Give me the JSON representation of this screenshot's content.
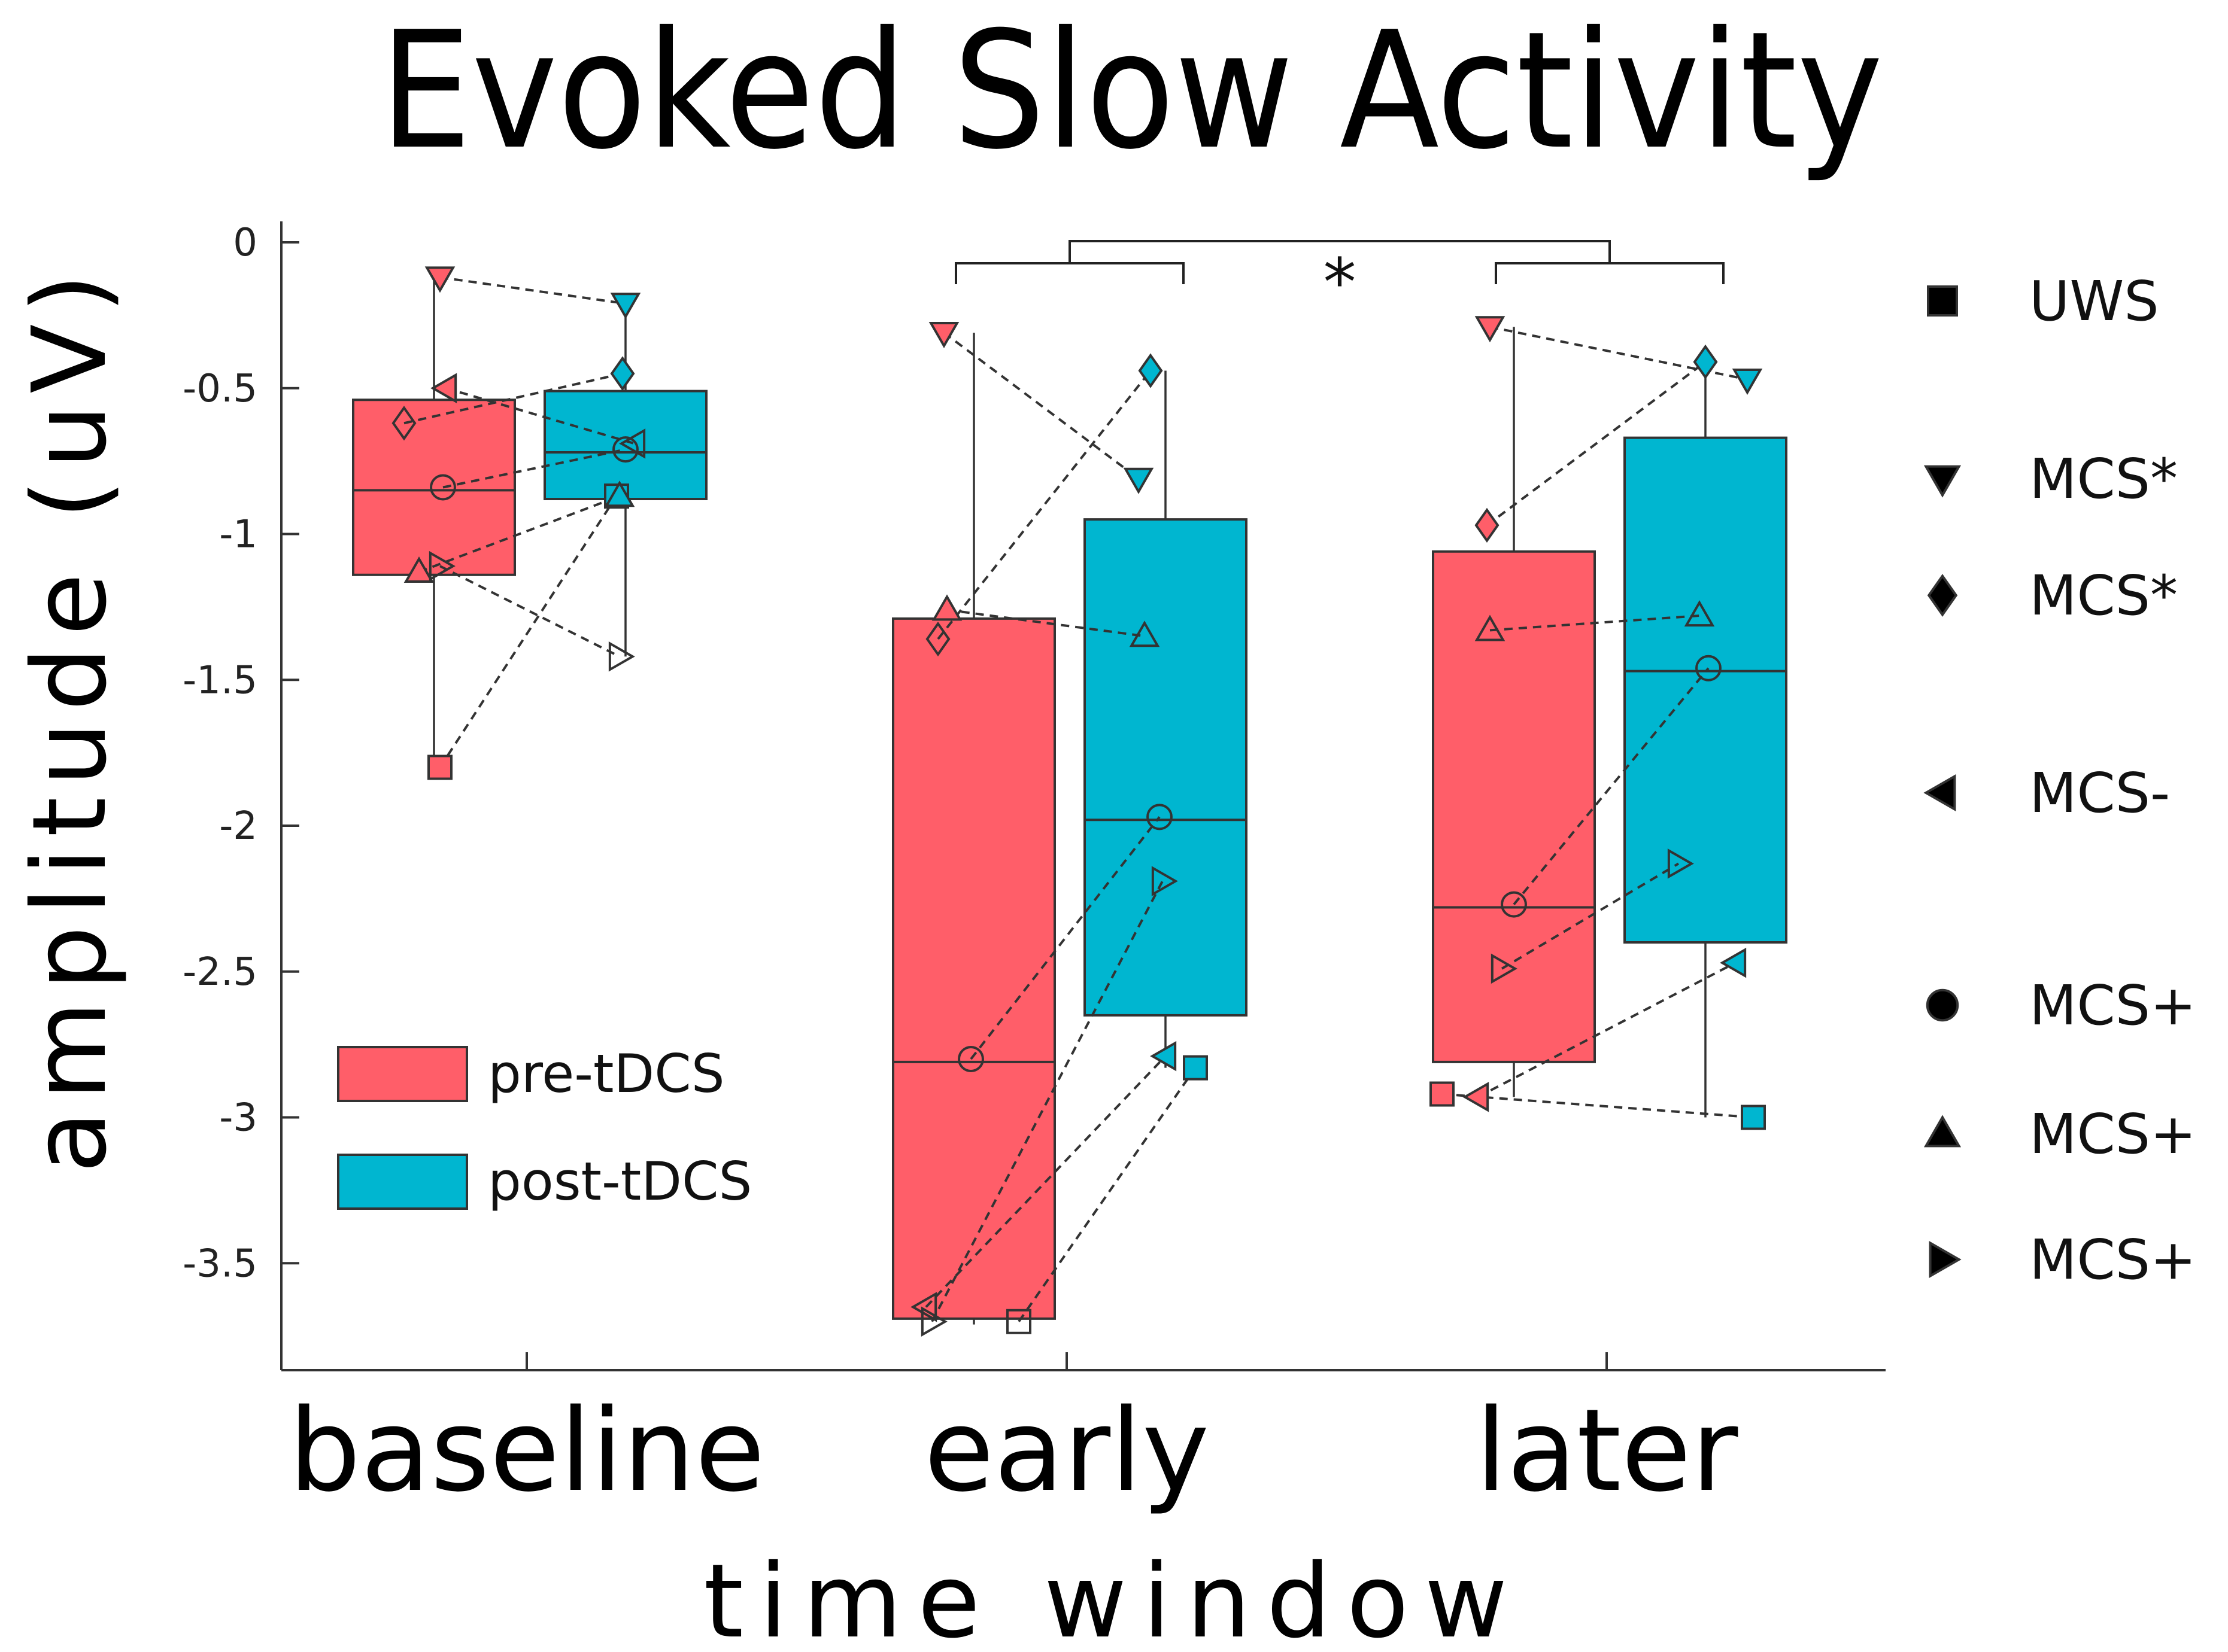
{
  "chart_data": {
    "type": "box",
    "title": "Evoked Slow Activity",
    "xlabel": "time window",
    "ylabel": "amplitude (uV)",
    "ylim": [
      -3.88,
      0.07
    ],
    "yticks": [
      0,
      -0.5,
      -1,
      -1.5,
      -2,
      -2.5,
      -3,
      -3.5
    ],
    "ytick_labels": [
      "0",
      "-0.5",
      "-1",
      "-1.5",
      "-2",
      "-2.5",
      "-3",
      "-3.5"
    ],
    "categories": [
      "baseline",
      "early",
      "later"
    ],
    "colors": {
      "pre": "#ff5e69",
      "post": "#00b6d0"
    },
    "series": [
      {
        "name": "pre-tDCS",
        "color": "#ff5e69",
        "boxes": [
          {
            "category": "baseline",
            "whisker_low": -1.8,
            "q1": -1.14,
            "median": -0.85,
            "q3": -0.54,
            "whisker_high": -0.12
          },
          {
            "category": "early",
            "whisker_low": -3.71,
            "q1": -3.69,
            "median": -2.81,
            "q3": -1.29,
            "whisker_high": -0.31
          },
          {
            "category": "later",
            "whisker_low": -2.93,
            "q1": -2.81,
            "median": -2.28,
            "q3": -1.06,
            "whisker_high": -0.29
          }
        ]
      },
      {
        "name": "post-tDCS",
        "color": "#00b6d0",
        "boxes": [
          {
            "category": "baseline",
            "whisker_low": -1.42,
            "q1": -0.88,
            "median": -0.72,
            "q3": -0.51,
            "whisker_high": -0.21
          },
          {
            "category": "early",
            "whisker_low": -2.83,
            "q1": -2.65,
            "median": -1.98,
            "q3": -0.95,
            "whisker_high": -0.44
          },
          {
            "category": "later",
            "whisker_low": -3.0,
            "q1": -2.4,
            "median": -1.47,
            "q3": -0.67,
            "whisker_high": -0.44
          }
        ]
      }
    ],
    "patients": [
      {
        "label": "UWS",
        "shape": "square",
        "pre": [
          -1.8,
          -3.7,
          -2.92
        ],
        "post": [
          -0.87,
          -2.83,
          -3.0
        ],
        "pre_filled": [
          true,
          false,
          true
        ],
        "post_filled": [
          true,
          true,
          true
        ]
      },
      {
        "label": "MCS*",
        "shape": "triangle-down",
        "pre": [
          -0.12,
          -0.31,
          -0.29
        ],
        "post": [
          -0.21,
          -0.81,
          -0.47
        ],
        "pre_filled": [
          true,
          true,
          true
        ],
        "post_filled": [
          true,
          true,
          true
        ]
      },
      {
        "label": "MCS*",
        "shape": "diamond",
        "pre": [
          -0.62,
          -1.36,
          -0.97
        ],
        "post": [
          -0.45,
          -0.44,
          -0.41
        ],
        "pre_filled": [
          false,
          false,
          true
        ],
        "post_filled": [
          true,
          true,
          true
        ]
      },
      {
        "label": "MCS-",
        "shape": "triangle-left",
        "pre": [
          -0.5,
          -3.65,
          -2.93
        ],
        "post": [
          -0.69,
          -2.79,
          -2.47
        ],
        "pre_filled": [
          true,
          false,
          true
        ],
        "post_filled": [
          false,
          true,
          true
        ]
      },
      {
        "label": "MCS+",
        "shape": "circle",
        "pre": [
          -0.84,
          -2.8,
          -2.27
        ],
        "post": [
          -0.71,
          -1.97,
          -1.46
        ],
        "pre_filled": [
          false,
          false,
          false
        ],
        "post_filled": [
          false,
          false,
          false
        ]
      },
      {
        "label": "MCS+",
        "shape": "triangle-up",
        "pre": [
          -1.13,
          -1.26,
          -1.33
        ],
        "post": [
          -0.87,
          -1.35,
          -1.28
        ],
        "pre_filled": [
          true,
          true,
          false
        ],
        "post_filled": [
          true,
          false,
          false
        ]
      },
      {
        "label": "MCS+",
        "shape": "triangle-right",
        "pre": [
          -1.11,
          -3.7,
          -2.49
        ],
        "post": [
          -1.42,
          -2.19,
          -2.13
        ],
        "pre_filled": [
          false,
          false,
          false
        ],
        "post_filled": [
          false,
          false,
          false
        ]
      }
    ],
    "significance": {
      "label": "*",
      "between": [
        "early",
        "later"
      ]
    },
    "legend": {
      "placement": "lower-left",
      "entries": [
        "pre-tDCS",
        "post-tDCS"
      ]
    },
    "marker_legend": {
      "placement": "right",
      "entries": [
        "UWS",
        "MCS*",
        "MCS*",
        "MCS-",
        "MCS+",
        "MCS+",
        "MCS+"
      ]
    }
  }
}
